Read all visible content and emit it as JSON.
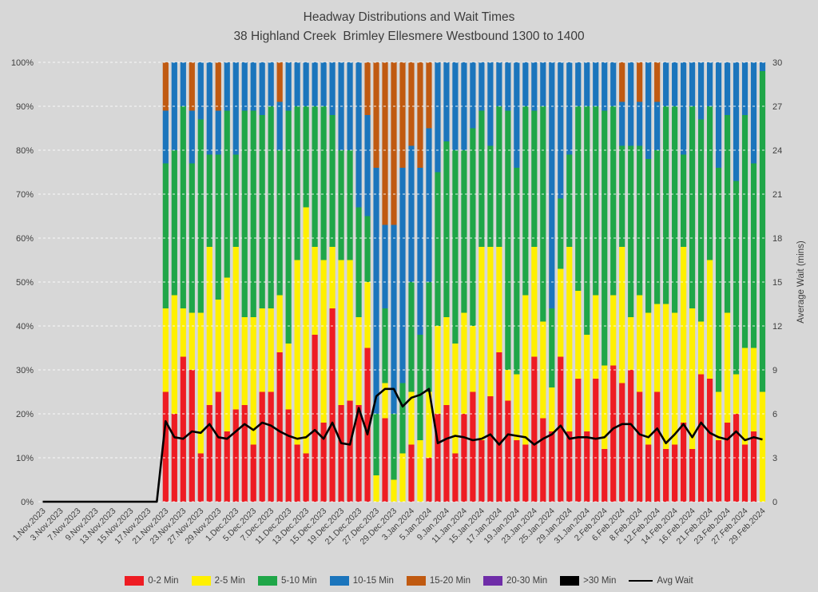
{
  "title": {
    "line1": "Headway Distributions and Wait Times",
    "line2": "38 Highland Creek  Brimley Ellesmere Westbound 1300 to 1400"
  },
  "colors": {
    "background": "#d7d7d7",
    "gridline": "#ffffff",
    "text": "#3f3f3f",
    "red": "#ee1c23",
    "yellow": "#fff000",
    "green": "#1fa648",
    "blue": "#1b75bc",
    "orange": "#c05a11",
    "purple": "#6f2da8",
    "black": "#000000"
  },
  "legend": [
    {
      "label": "0-2 Min",
      "color": "#ee1c23",
      "type": "box"
    },
    {
      "label": "2-5 Min",
      "color": "#fff000",
      "type": "box"
    },
    {
      "label": "5-10 Min",
      "color": "#1fa648",
      "type": "box"
    },
    {
      "label": "10-15 Min",
      "color": "#1b75bc",
      "type": "box"
    },
    {
      "label": "15-20 Min",
      "color": "#c05a11",
      "type": "box"
    },
    {
      "label": "20-30 Min",
      "color": "#6f2da8",
      "type": "box"
    },
    {
      "label": ">30 Min",
      "color": "#000000",
      "type": "box"
    },
    {
      "label": "Avg Wait",
      "color": "#000000",
      "type": "line"
    }
  ],
  "chart_data": {
    "type": "stacked-bar+line",
    "y_left": {
      "min": 0,
      "max": 100,
      "tick_step": 10,
      "tick_suffix": "%"
    },
    "y_right": {
      "min": 0,
      "max": 30,
      "tick_step": 3,
      "title": "Average Wait (mins)"
    },
    "grid": "horizontal-dashed",
    "legend_position": "bottom",
    "categories": [
      "1.Nov.2023",
      "2.Nov.2023",
      "3.Nov.2023",
      "6.Nov.2023",
      "7.Nov.2023",
      "8.Nov.2023",
      "9.Nov.2023",
      "10.Nov.2023",
      "13.Nov.2023",
      "14.Nov.2023",
      "15.Nov.2023",
      "16.Nov.2023",
      "17.Nov.2023",
      "20.Nov.2023",
      "21.Nov.2023",
      "22.Nov.2023",
      "23.Nov.2023",
      "24.Nov.2023",
      "27.Nov.2023",
      "28.Nov.2023",
      "29.Nov.2023",
      "30.Nov.2023",
      "1.Dec.2023",
      "4.Dec.2023",
      "5.Dec.2023",
      "6.Dec.2023",
      "7.Dec.2023",
      "8.Dec.2023",
      "11.Dec.2023",
      "12.Dec.2023",
      "13.Dec.2023",
      "14.Dec.2023",
      "15.Dec.2023",
      "18.Dec.2023",
      "19.Dec.2023",
      "20.Dec.2023",
      "21.Dec.2023",
      "22.Dec.2023",
      "27.Dec.2023",
      "28.Dec.2023",
      "29.Dec.2023",
      "2.Jan.2024",
      "3.Jan.2024",
      "4.Jan.2024",
      "5.Jan.2024",
      "8.Jan.2024",
      "9.Jan.2024",
      "10.Jan.2024",
      "11.Jan.2024",
      "12.Jan.2024",
      "15.Jan.2024",
      "16.Jan.2024",
      "17.Jan.2024",
      "18.Jan.2024",
      "19.Jan.2024",
      "22.Jan.2024",
      "23.Jan.2024",
      "24.Jan.2024",
      "25.Jan.2024",
      "26.Jan.2024",
      "29.Jan.2024",
      "30.Jan.2024",
      "31.Jan.2024",
      "1.Feb.2024",
      "2.Feb.2024",
      "5.Feb.2024",
      "6.Feb.2024",
      "7.Feb.2024",
      "8.Feb.2024",
      "9.Feb.2024",
      "12.Feb.2024",
      "13.Feb.2024",
      "14.Feb.2024",
      "15.Feb.2024",
      "16.Feb.2024",
      "20.Feb.2024",
      "21.Feb.2024",
      "22.Feb.2024",
      "23.Feb.2024",
      "26.Feb.2024",
      "27.Feb.2024",
      "28.Feb.2024",
      "29.Feb.2024"
    ],
    "x_tick_every": 2,
    "series": [
      {
        "name": "0-2 Min",
        "color": "#ee1c23",
        "values": [
          0,
          0,
          0,
          0,
          0,
          0,
          0,
          0,
          0,
          0,
          0,
          0,
          0,
          0,
          25,
          20,
          33,
          30,
          11,
          22,
          25,
          16,
          21,
          22,
          13,
          25,
          25,
          34,
          21,
          13,
          11,
          38,
          18,
          44,
          22,
          23,
          22,
          35,
          0,
          19,
          0,
          0,
          13,
          0,
          10,
          20,
          22,
          11,
          20,
          25,
          14,
          24,
          34,
          23,
          14,
          13,
          33,
          19,
          16,
          33,
          16,
          28,
          16,
          28,
          12,
          31,
          27,
          30,
          25,
          13,
          25,
          12,
          13,
          18,
          12,
          29,
          28,
          14,
          18,
          20,
          13,
          16,
          0
        ]
      },
      {
        "name": "2-5 Min",
        "color": "#fff000",
        "values": [
          0,
          0,
          0,
          0,
          0,
          0,
          0,
          0,
          0,
          0,
          0,
          0,
          0,
          0,
          19,
          27,
          11,
          13,
          32,
          36,
          21,
          35,
          37,
          20,
          29,
          19,
          19,
          13,
          15,
          42,
          56,
          20,
          37,
          14,
          33,
          32,
          20,
          15,
          6,
          8,
          5,
          11,
          12,
          14,
          15,
          20,
          20,
          25,
          23,
          15,
          44,
          34,
          24,
          7,
          15,
          34,
          25,
          22,
          10,
          20,
          42,
          20,
          22,
          19,
          19,
          16,
          31,
          12,
          22,
          30,
          20,
          33,
          30,
          40,
          32,
          12,
          27,
          11,
          25,
          9,
          22,
          19,
          25
        ]
      },
      {
        "name": "5-10 Min",
        "color": "#1fa648",
        "values": [
          0,
          0,
          0,
          0,
          0,
          0,
          0,
          0,
          0,
          0,
          0,
          0,
          0,
          0,
          33,
          33,
          46,
          34,
          44,
          21,
          33,
          38,
          21,
          47,
          47,
          44,
          46,
          33,
          53,
          35,
          23,
          32,
          35,
          30,
          25,
          25,
          25,
          15,
          14,
          17,
          15,
          16,
          25,
          24,
          25,
          35,
          40,
          44,
          37,
          45,
          31,
          23,
          32,
          59,
          47,
          43,
          31,
          49,
          18,
          16,
          21,
          42,
          52,
          43,
          58,
          43,
          23,
          39,
          34,
          35,
          35,
          45,
          47,
          21,
          46,
          46,
          35,
          51,
          45,
          44,
          53,
          42,
          73
        ]
      },
      {
        "name": "10-15 Min",
        "color": "#1b75bc",
        "values": [
          0,
          0,
          0,
          0,
          0,
          0,
          0,
          0,
          0,
          0,
          0,
          0,
          0,
          0,
          12,
          20,
          10,
          12,
          13,
          21,
          10,
          11,
          21,
          11,
          11,
          12,
          10,
          11,
          11,
          10,
          10,
          10,
          10,
          12,
          20,
          20,
          33,
          23,
          56,
          19,
          43,
          49,
          31,
          38,
          35,
          25,
          18,
          20,
          20,
          15,
          11,
          19,
          10,
          11,
          24,
          10,
          11,
          10,
          56,
          31,
          21,
          10,
          10,
          10,
          11,
          10,
          10,
          19,
          10,
          22,
          11,
          10,
          10,
          21,
          10,
          13,
          10,
          24,
          12,
          27,
          12,
          23,
          2
        ]
      },
      {
        "name": "15-20 Min",
        "color": "#c05a11",
        "values": [
          0,
          0,
          0,
          0,
          0,
          0,
          0,
          0,
          0,
          0,
          0,
          0,
          0,
          0,
          11,
          0,
          0,
          11,
          0,
          0,
          11,
          0,
          0,
          0,
          0,
          0,
          0,
          9,
          0,
          0,
          0,
          0,
          0,
          0,
          0,
          0,
          0,
          12,
          24,
          37,
          37,
          24,
          19,
          24,
          15,
          0,
          0,
          0,
          0,
          0,
          0,
          0,
          0,
          0,
          0,
          0,
          0,
          0,
          0,
          0,
          0,
          0,
          0,
          0,
          0,
          0,
          9,
          0,
          9,
          0,
          9,
          0,
          0,
          0,
          0,
          0,
          0,
          0,
          0,
          0,
          0,
          0,
          0
        ]
      },
      {
        "name": "20-30 Min",
        "color": "#6f2da8",
        "values": [
          0,
          0,
          0,
          0,
          0,
          0,
          0,
          0,
          0,
          0,
          0,
          0,
          0,
          0,
          0,
          0,
          0,
          0,
          0,
          0,
          0,
          0,
          0,
          0,
          0,
          0,
          0,
          0,
          0,
          0,
          0,
          0,
          0,
          0,
          0,
          0,
          0,
          0,
          0,
          0,
          0,
          0,
          0,
          0,
          0,
          0,
          0,
          0,
          0,
          0,
          0,
          0,
          0,
          0,
          0,
          0,
          0,
          0,
          0,
          0,
          0,
          0,
          0,
          0,
          0,
          0,
          0,
          0,
          0,
          0,
          0,
          0,
          0,
          0,
          0,
          0,
          0,
          0,
          0,
          0,
          0,
          0,
          0
        ]
      },
      {
        "name": ">30 Min",
        "color": "#000000",
        "values": [
          0,
          0,
          0,
          0,
          0,
          0,
          0,
          0,
          0,
          0,
          0,
          0,
          0,
          0,
          0,
          0,
          0,
          0,
          0,
          0,
          0,
          0,
          0,
          0,
          0,
          0,
          0,
          0,
          0,
          0,
          0,
          0,
          0,
          0,
          0,
          0,
          0,
          0,
          0,
          0,
          0,
          0,
          0,
          0,
          0,
          0,
          0,
          0,
          0,
          0,
          0,
          0,
          0,
          0,
          0,
          0,
          0,
          0,
          0,
          0,
          0,
          0,
          0,
          0,
          0,
          0,
          0,
          0,
          0,
          0,
          0,
          0,
          0,
          0,
          0,
          0,
          0,
          0,
          0,
          0,
          0,
          0,
          0
        ]
      }
    ],
    "line_series": {
      "name": "Avg Wait",
      "color": "#000000",
      "axis": "right",
      "values": [
        0,
        0,
        0,
        0,
        0,
        0,
        0,
        0,
        0,
        0,
        0,
        0,
        0,
        0,
        5.5,
        4.4,
        4.3,
        4.8,
        4.7,
        5.3,
        4.4,
        4.3,
        4.8,
        5.3,
        4.9,
        5.4,
        5.2,
        4.8,
        4.5,
        4.3,
        4.4,
        4.9,
        4.3,
        5.4,
        4.0,
        3.9,
        6.4,
        4.6,
        7.2,
        7.7,
        7.7,
        6.5,
        7.1,
        7.3,
        7.7,
        4.0,
        4.3,
        4.5,
        4.4,
        4.2,
        4.3,
        4.6,
        3.9,
        4.6,
        4.5,
        4.4,
        3.9,
        4.3,
        4.6,
        5.2,
        4.3,
        4.4,
        4.4,
        4.3,
        4.4,
        5.0,
        5.3,
        5.3,
        4.6,
        4.4,
        5.0,
        4.0,
        4.6,
        5.3,
        4.4,
        5.4,
        4.7,
        4.4,
        4.25,
        4.8,
        4.2,
        4.4,
        4.25
      ]
    }
  }
}
